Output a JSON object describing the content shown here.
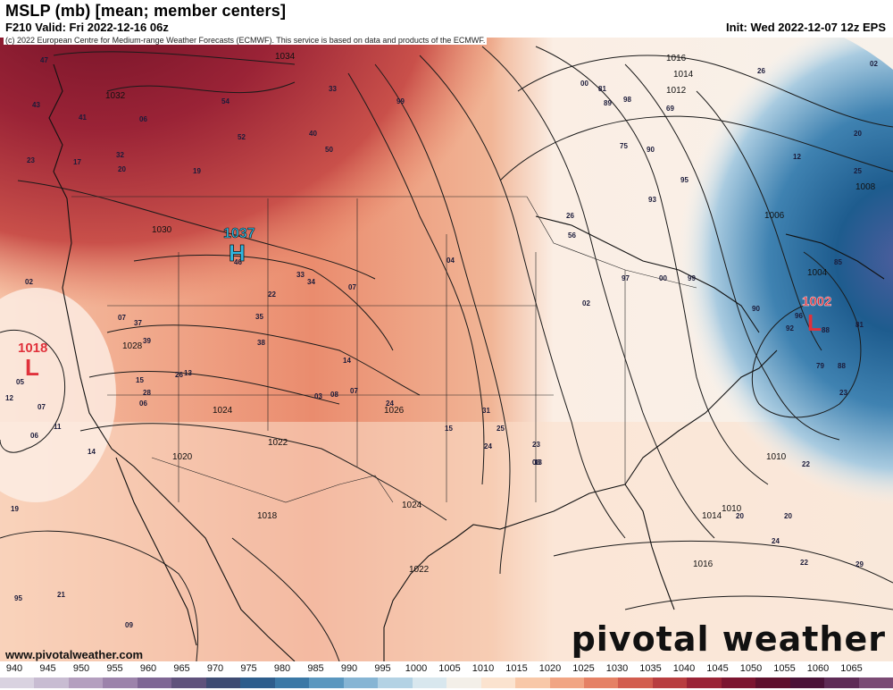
{
  "header": {
    "title": "MSLP (mb) [mean; member centers]",
    "valid": "F210 Valid: Fri 2022-12-16 06z",
    "init": "Init: Wed 2022-12-07 12z EPS",
    "credit": "(c) 2022 European Centre for Medium-range Weather Forecasts (ECMWF). This service is based on data and products of the ECMWF."
  },
  "map": {
    "high_center": {
      "label": "H",
      "value": "1037"
    },
    "low_east": {
      "label": "L",
      "value": "1002"
    },
    "low_west": {
      "label": "L",
      "value": "1018"
    },
    "isobar_labels": [
      "1034",
      "1032",
      "1030",
      "1028",
      "1026",
      "1024",
      "1022",
      "1020",
      "1018",
      "1016",
      "1014",
      "1012",
      "1010",
      "1008",
      "1006",
      "1004"
    ],
    "member_values": [
      "47",
      "43",
      "41",
      "06",
      "23",
      "17",
      "20",
      "19",
      "32",
      "54",
      "52",
      "33",
      "40",
      "50",
      "99",
      "46",
      "33",
      "34",
      "07",
      "22",
      "35",
      "38",
      "07",
      "37",
      "39",
      "28",
      "26",
      "13",
      "15",
      "06",
      "03",
      "14",
      "08",
      "07",
      "24",
      "31",
      "15",
      "25",
      "24",
      "23",
      "08",
      "13",
      "04",
      "00",
      "81",
      "89",
      "98",
      "69",
      "75",
      "90",
      "95",
      "93",
      "26",
      "56",
      "97",
      "00",
      "99",
      "02",
      "85",
      "90",
      "92",
      "96",
      "88",
      "81",
      "79",
      "88",
      "23",
      "22",
      "20",
      "20",
      "24",
      "22",
      "29",
      "26",
      "02",
      "12",
      "20",
      "25",
      "19",
      "21",
      "09",
      "95",
      "05",
      "12",
      "07",
      "06",
      "11",
      "14",
      "02"
    ],
    "colors": {
      "high": "#8b1a2b",
      "mid": "#e9846a",
      "light": "#fbe7d8",
      "low": "#1d5a8a",
      "deep": "#143a6b"
    }
  },
  "footer": {
    "website": "www.pivotalweather.com",
    "brand": "pivotal weather"
  },
  "scale": {
    "ticks": [
      "940",
      "945",
      "950",
      "955",
      "960",
      "965",
      "970",
      "975",
      "980",
      "985",
      "990",
      "995",
      "1000",
      "1005",
      "1010",
      "1015",
      "1020",
      "1025",
      "1030",
      "1035",
      "1040",
      "1045",
      "1050",
      "1055",
      "1060",
      "1065"
    ],
    "colors": [
      "#d9d2e0",
      "#c8bcd2",
      "#b49fbf",
      "#9c83ab",
      "#7e6694",
      "#5f527c",
      "#3e4b73",
      "#2d5d8c",
      "#3a78a6",
      "#5a97bf",
      "#86b5d4",
      "#b3d2e4",
      "#d8e7ee",
      "#f3efe8",
      "#fbe3cf",
      "#f8c8a8",
      "#f1a584",
      "#e58165",
      "#d25d4f",
      "#b83d40",
      "#9a2336",
      "#7c1530",
      "#5e0f2c",
      "#4a1238",
      "#5e2b56",
      "#7a4a74"
    ]
  }
}
